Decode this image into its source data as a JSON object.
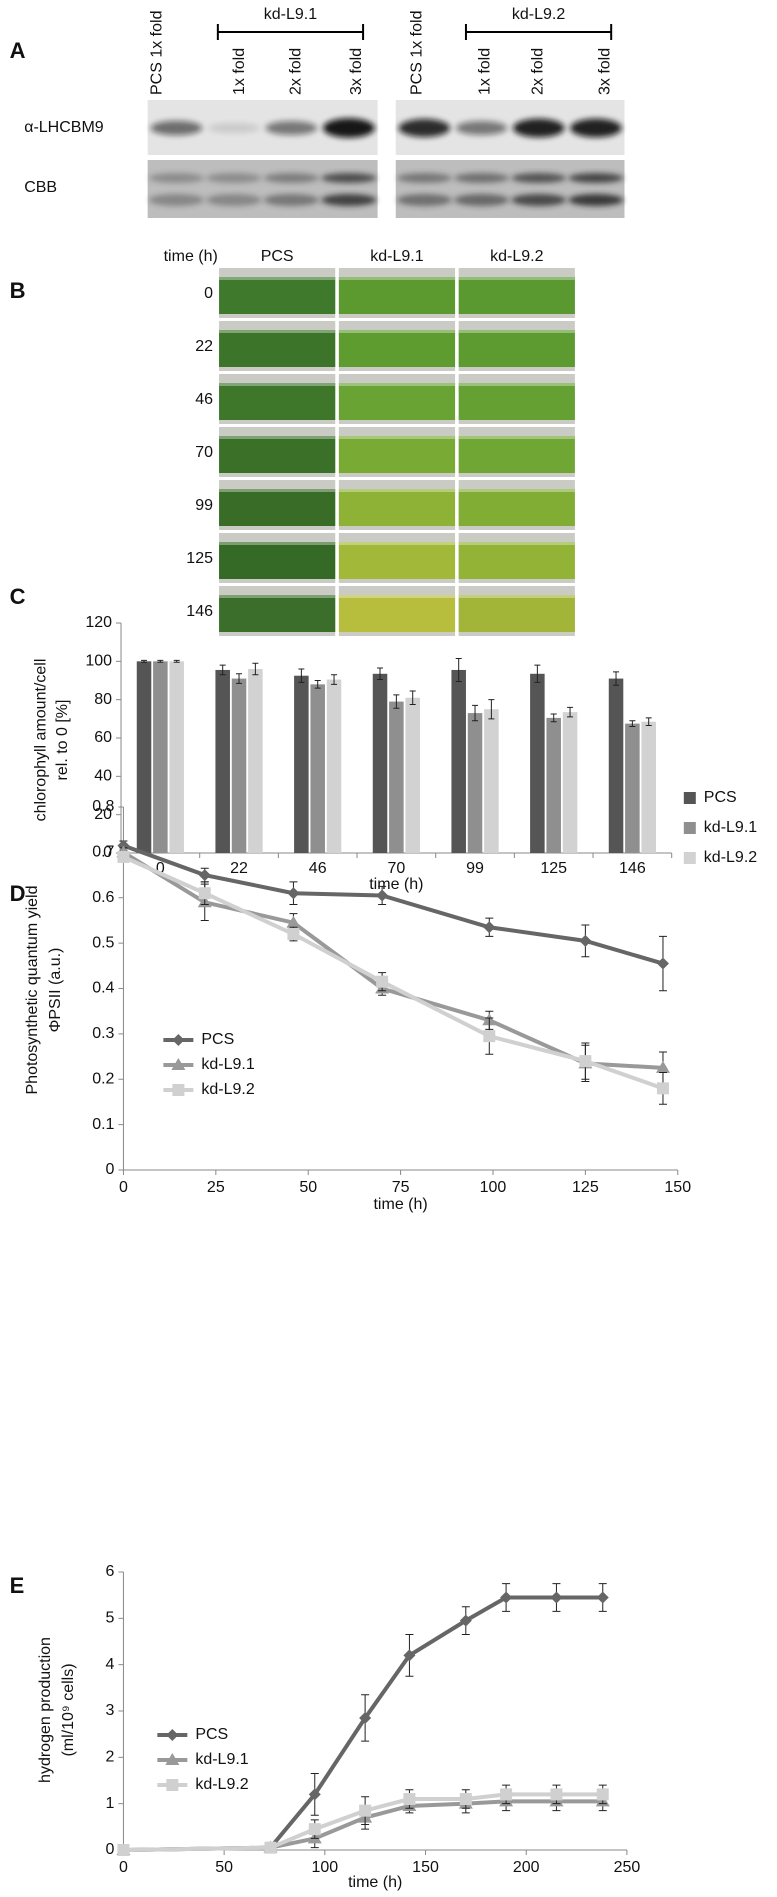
{
  "panel_a": {
    "label": "A",
    "left_blot": {
      "group": "kd-L9.1",
      "lanes": [
        "PCS 1x fold",
        "1x fold",
        "2x fold",
        "3x fold"
      ]
    },
    "right_blot": {
      "group": "kd-L9.2",
      "lanes": [
        "PCS 1x fold",
        "1x fold",
        "2x fold",
        "3x fold"
      ]
    },
    "rows": [
      "α-LHCBM9",
      "CBB"
    ]
  },
  "panel_b": {
    "label": "B",
    "corner": "time (h)",
    "columns": [
      "PCS",
      "kd-L9.1",
      "kd-L9.2"
    ],
    "rows": [
      "0",
      "22",
      "46",
      "70",
      "99",
      "125",
      "146"
    ]
  },
  "chart_data": [
    {
      "type": "bar",
      "panel": "C",
      "y_label": [
        "chlorophyll amount/cell",
        "rel. to 0 [%]"
      ],
      "x_label": "time (h)",
      "categories": [
        "0",
        "22",
        "46",
        "70",
        "99",
        "125",
        "146"
      ],
      "ylim": [
        0,
        120
      ],
      "yticks": [
        0,
        20,
        40,
        60,
        80,
        100,
        120
      ],
      "legend": "right",
      "series": [
        {
          "name": "PCS",
          "color": "#555555",
          "values": [
            100,
            95.5,
            92.5,
            93.5,
            95.5,
            93.5,
            91
          ],
          "errors": [
            0.5,
            2.5,
            3.5,
            3,
            6,
            4.5,
            3.5
          ]
        },
        {
          "name": "kd-L9.1",
          "color": "#8f8f8f",
          "values": [
            100,
            91,
            88,
            79,
            73,
            70.5,
            67.5
          ],
          "errors": [
            0.5,
            2.5,
            2,
            3.5,
            4,
            2,
            1.5
          ]
        },
        {
          "name": "kd-L9.2",
          "color": "#d2d2d2",
          "values": [
            100,
            96,
            90.5,
            81,
            75,
            73.5,
            68.5
          ],
          "errors": [
            0.5,
            3,
            2.5,
            3.5,
            5,
            2.5,
            2
          ]
        }
      ]
    },
    {
      "type": "line",
      "panel": "D",
      "y_label": [
        "Photosynthetic quantum yield",
        "ΦPSII (a.u.)"
      ],
      "x_label": "time (h)",
      "x": [
        0,
        22,
        46,
        70,
        99,
        125,
        146
      ],
      "xlim": [
        0,
        150
      ],
      "xticks": [
        0,
        25,
        50,
        75,
        100,
        125,
        150
      ],
      "ylim": [
        0,
        0.8
      ],
      "yticks": [
        0,
        0.1,
        0.2,
        0.3,
        0.4,
        0.5,
        0.6,
        0.7,
        0.8
      ],
      "legend": "lower left",
      "series": [
        {
          "name": "PCS",
          "color": "#666666",
          "marker": "diamond",
          "values": [
            0.715,
            0.65,
            0.61,
            0.605,
            0.535,
            0.505,
            0.455
          ],
          "errors": [
            0.01,
            0.015,
            0.025,
            0.02,
            0.02,
            0.035,
            0.06
          ]
        },
        {
          "name": "kd-L9.1",
          "color": "#999999",
          "marker": "triangle",
          "values": [
            0.7,
            0.59,
            0.545,
            0.4,
            0.33,
            0.235,
            0.225
          ],
          "errors": [
            0.01,
            0.04,
            0.02,
            0.015,
            0.02,
            0.04,
            0.035
          ]
        },
        {
          "name": "kd-L9.2",
          "color": "#d0d0d0",
          "marker": "square",
          "values": [
            0.69,
            0.61,
            0.52,
            0.415,
            0.295,
            0.24,
            0.18
          ],
          "errors": [
            0.01,
            0.025,
            0.015,
            0.02,
            0.04,
            0.04,
            0.035
          ]
        }
      ]
    },
    {
      "type": "line",
      "panel": "E",
      "y_label": [
        "hydrogen production",
        "(ml/10⁹ cells)"
      ],
      "x_label": "time (h)",
      "x": [
        0,
        73,
        95,
        120,
        142,
        170,
        190,
        215,
        238
      ],
      "xlim": [
        0,
        250
      ],
      "xticks": [
        0,
        50,
        100,
        150,
        200,
        250
      ],
      "ylim": [
        0,
        6
      ],
      "yticks": [
        0,
        1,
        2,
        3,
        4,
        5,
        6
      ],
      "legend": "lower left",
      "series": [
        {
          "name": "PCS",
          "color": "#666666",
          "marker": "diamond",
          "values": [
            0,
            0.05,
            1.2,
            2.85,
            4.2,
            4.95,
            5.45,
            5.45,
            5.45
          ],
          "errors": [
            0,
            0.05,
            0.45,
            0.5,
            0.45,
            0.3,
            0.3,
            0.3,
            0.3
          ]
        },
        {
          "name": "kd-L9.1",
          "color": "#999999",
          "marker": "triangle",
          "values": [
            0,
            0.05,
            0.25,
            0.7,
            0.95,
            1,
            1.05,
            1.05,
            1.05
          ],
          "errors": [
            0,
            0.05,
            0.2,
            0.25,
            0.15,
            0.2,
            0.2,
            0.2,
            0.2
          ]
        },
        {
          "name": "kd-L9.2",
          "color": "#d0d0d0",
          "marker": "square",
          "values": [
            0,
            0.05,
            0.45,
            0.85,
            1.1,
            1.1,
            1.2,
            1.2,
            1.2
          ],
          "errors": [
            0,
            0.05,
            0.2,
            0.3,
            0.2,
            0.2,
            0.2,
            0.2,
            0.2
          ]
        }
      ]
    }
  ]
}
